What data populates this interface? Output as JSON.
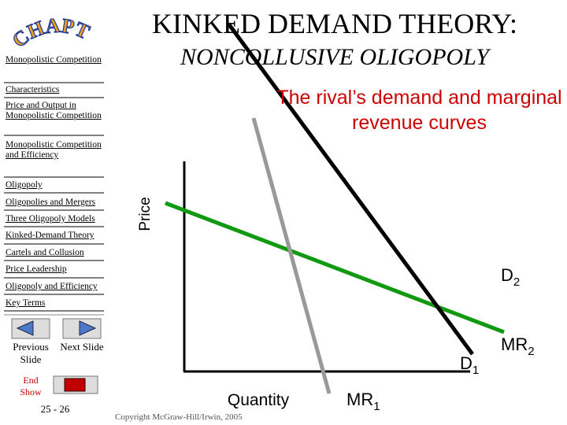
{
  "header": {
    "logo": "CHAPTER",
    "title": "KINKED DEMAND THEORY:",
    "subtitle": "NONCOLLUSIVE OLIGOPOLY"
  },
  "sidebar": {
    "items": [
      "Monopolistic Competition",
      "Characteristics",
      "Price and Output in Monopolistic Competition",
      "Monopolistic Competition and Efficiency",
      "Oligopoly",
      "Oligopolies and Mergers",
      "Three Oligopoly Models",
      "Kinked-Demand Theory",
      "Cartels and Collusion",
      "Price Leadership",
      "Oligopoly and Efficiency",
      "Key Terms"
    ]
  },
  "nav": {
    "previous": "Previous Slide",
    "next": "Next Slide",
    "end": "End Show",
    "page": "25 - 26"
  },
  "diagram": {
    "caption": "The rival’s demand and marginal revenue curves",
    "y_axis": "Price",
    "x_axis": "Quantity",
    "curves": [
      {
        "name": "D",
        "sub": "1"
      },
      {
        "name": "MR",
        "sub": "1"
      },
      {
        "name": "D",
        "sub": "2"
      },
      {
        "name": "MR",
        "sub": "2"
      }
    ]
  },
  "footer": {
    "copyright": "Copyright McGraw-Hill/Irwin, 2005"
  }
}
